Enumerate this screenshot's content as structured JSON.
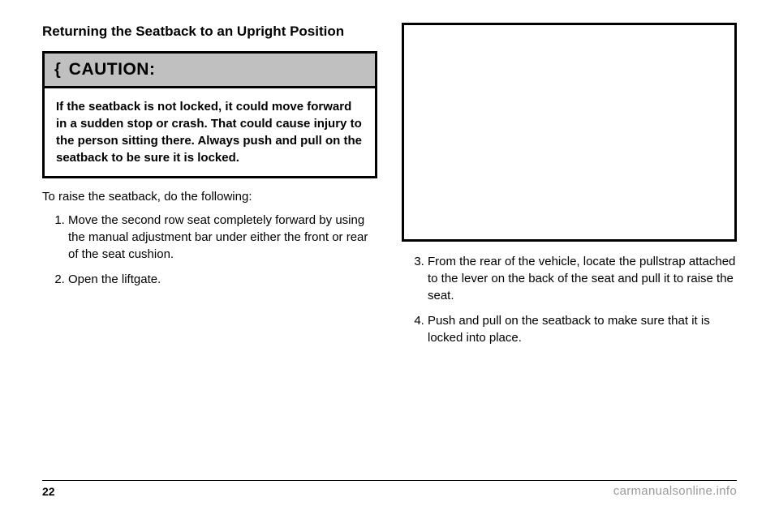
{
  "left": {
    "title": "Returning the Seatback to an Upright Position",
    "caution_label": "CAUTION:",
    "caution_body": "If the seatback is not locked, it could move forward in a sudden stop or crash. That could cause injury to the person sitting there. Always push and pull on the seatback to be sure it is locked.",
    "lead": "To raise the seatback, do the following:",
    "steps": [
      "Move the second row seat completely forward by using the manual adjustment bar under either the front or rear of the seat cushion.",
      "Open the liftgate."
    ]
  },
  "right": {
    "steps": [
      "From the rear of the vehicle, locate the pullstrap attached to the lever on the back of the seat and pull it to raise the seat.",
      "Push and pull on the seatback to make sure that it is locked into place."
    ]
  },
  "page_number": "22",
  "watermark": "carmanualsonline.info",
  "colors": {
    "header_bg": "#c0c0c0",
    "border": "#000000",
    "text": "#000000",
    "watermark": "#9a9a9a",
    "page_bg": "#ffffff"
  }
}
